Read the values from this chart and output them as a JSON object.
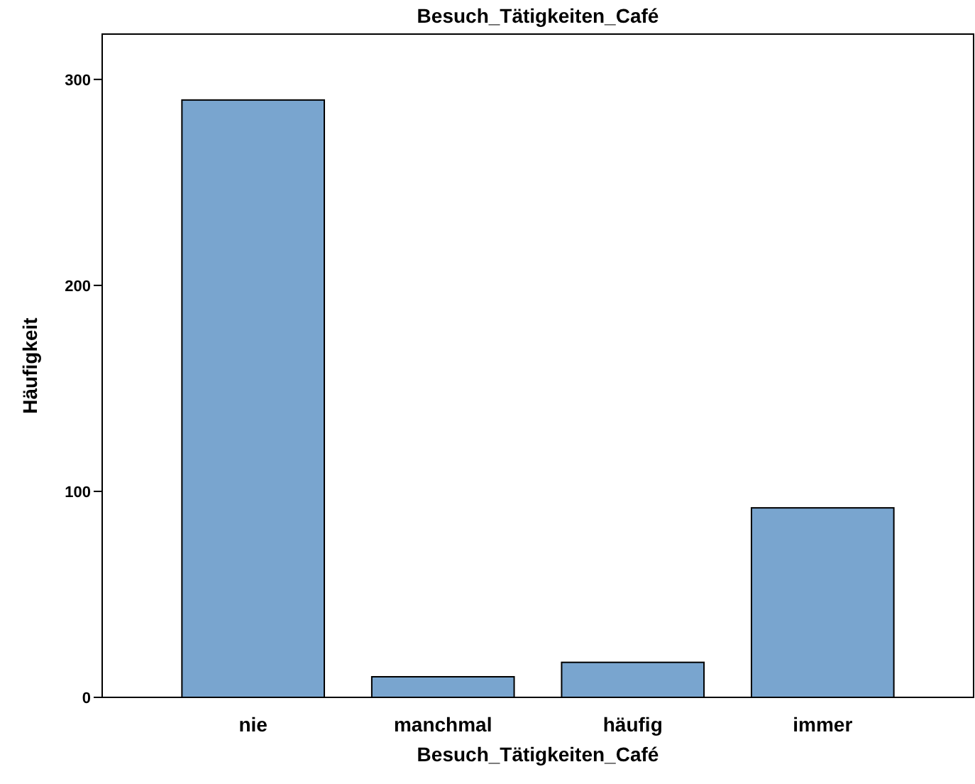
{
  "chart_data": {
    "type": "bar",
    "title": "Besuch_Tätigkeiten_Café",
    "xlabel": "Besuch_Tätigkeiten_Café",
    "ylabel": "Häufigkeit",
    "categories": [
      "nie",
      "manchmal",
      "häufig",
      "immer"
    ],
    "values": [
      290,
      10,
      17,
      92
    ],
    "color": "#79a5cf",
    "ylim": [
      0,
      322
    ],
    "yticks": [
      0,
      100,
      200,
      300
    ]
  }
}
